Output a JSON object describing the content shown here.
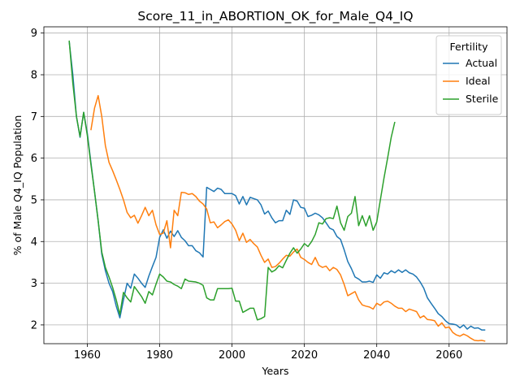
{
  "chart_data": {
    "type": "line",
    "title": "Score_11_in_ABORTION_OK_for_Male_Q4_IQ",
    "xlabel": "Years",
    "ylabel": "% of Male Q4_IQ Population",
    "xlim": [
      1948,
      2076
    ],
    "ylim": [
      1.55,
      9.15
    ],
    "xticks": [
      1960,
      1980,
      2000,
      2020,
      2040,
      2060
    ],
    "yticks": [
      2,
      3,
      4,
      5,
      6,
      7,
      8,
      9
    ],
    "grid": true,
    "legend": {
      "title": "Fertility",
      "position": "top-right"
    },
    "series": [
      {
        "name": "Actual",
        "color": "#1f77b4",
        "points": [
          [
            1955,
            8.8
          ],
          [
            1956,
            8.0
          ],
          [
            1957,
            7.0
          ],
          [
            1958,
            6.5
          ],
          [
            1959,
            7.1
          ],
          [
            1960,
            6.6
          ],
          [
            1961,
            5.9
          ],
          [
            1962,
            5.2
          ],
          [
            1963,
            4.5
          ],
          [
            1964,
            3.7
          ],
          [
            1965,
            3.3
          ],
          [
            1966,
            3.0
          ],
          [
            1967,
            2.8
          ],
          [
            1968,
            2.45
          ],
          [
            1969,
            2.17
          ],
          [
            1970,
            2.6
          ],
          [
            1971,
            3.0
          ],
          [
            1972,
            2.88
          ],
          [
            1973,
            3.22
          ],
          [
            1974,
            3.12
          ],
          [
            1975,
            3.0
          ],
          [
            1976,
            2.9
          ],
          [
            1977,
            3.17
          ],
          [
            1978,
            3.4
          ],
          [
            1979,
            3.62
          ],
          [
            1980,
            4.1
          ],
          [
            1981,
            4.28
          ],
          [
            1982,
            4.08
          ],
          [
            1983,
            4.25
          ],
          [
            1984,
            4.12
          ],
          [
            1985,
            4.26
          ],
          [
            1986,
            4.1
          ],
          [
            1987,
            4.02
          ],
          [
            1988,
            3.9
          ],
          [
            1989,
            3.9
          ],
          [
            1990,
            3.78
          ],
          [
            1991,
            3.73
          ],
          [
            1992,
            3.63
          ],
          [
            1993,
            5.3
          ],
          [
            1994,
            5.25
          ],
          [
            1995,
            5.2
          ],
          [
            1996,
            5.28
          ],
          [
            1997,
            5.25
          ],
          [
            1998,
            5.15
          ],
          [
            1999,
            5.15
          ],
          [
            2000,
            5.15
          ],
          [
            2001,
            5.1
          ],
          [
            2002,
            4.9
          ],
          [
            2003,
            5.08
          ],
          [
            2004,
            4.88
          ],
          [
            2005,
            5.06
          ],
          [
            2006,
            5.03
          ],
          [
            2007,
            5.0
          ],
          [
            2008,
            4.88
          ],
          [
            2009,
            4.66
          ],
          [
            2010,
            4.73
          ],
          [
            2011,
            4.57
          ],
          [
            2012,
            4.45
          ],
          [
            2013,
            4.5
          ],
          [
            2014,
            4.5
          ],
          [
            2015,
            4.75
          ],
          [
            2016,
            4.65
          ],
          [
            2017,
            5.0
          ],
          [
            2018,
            4.97
          ],
          [
            2019,
            4.82
          ],
          [
            2020,
            4.8
          ],
          [
            2021,
            4.6
          ],
          [
            2022,
            4.63
          ],
          [
            2023,
            4.68
          ],
          [
            2024,
            4.64
          ],
          [
            2025,
            4.57
          ],
          [
            2026,
            4.45
          ],
          [
            2027,
            4.32
          ],
          [
            2028,
            4.28
          ],
          [
            2029,
            4.12
          ],
          [
            2030,
            4.05
          ],
          [
            2031,
            3.8
          ],
          [
            2032,
            3.52
          ],
          [
            2033,
            3.35
          ],
          [
            2034,
            3.15
          ],
          [
            2035,
            3.1
          ],
          [
            2036,
            3.03
          ],
          [
            2037,
            3.03
          ],
          [
            2038,
            3.05
          ],
          [
            2039,
            3.02
          ],
          [
            2040,
            3.2
          ],
          [
            2041,
            3.12
          ],
          [
            2042,
            3.25
          ],
          [
            2043,
            3.22
          ],
          [
            2044,
            3.3
          ],
          [
            2045,
            3.25
          ],
          [
            2046,
            3.32
          ],
          [
            2047,
            3.26
          ],
          [
            2048,
            3.32
          ],
          [
            2049,
            3.25
          ],
          [
            2050,
            3.22
          ],
          [
            2051,
            3.15
          ],
          [
            2052,
            3.03
          ],
          [
            2053,
            2.88
          ],
          [
            2054,
            2.65
          ],
          [
            2055,
            2.52
          ],
          [
            2056,
            2.4
          ],
          [
            2057,
            2.27
          ],
          [
            2058,
            2.2
          ],
          [
            2059,
            2.1
          ],
          [
            2060,
            2.03
          ],
          [
            2061,
            2.02
          ],
          [
            2062,
            2.0
          ],
          [
            2063,
            1.93
          ],
          [
            2064,
            2.0
          ],
          [
            2065,
            1.9
          ],
          [
            2066,
            1.97
          ],
          [
            2067,
            1.92
          ],
          [
            2068,
            1.93
          ],
          [
            2069,
            1.88
          ],
          [
            2070,
            1.88
          ]
        ]
      },
      {
        "name": "Ideal",
        "color": "#ff7f0e",
        "points": [
          [
            1961,
            6.67
          ],
          [
            1962,
            7.2
          ],
          [
            1963,
            7.5
          ],
          [
            1964,
            7.0
          ],
          [
            1965,
            6.3
          ],
          [
            1966,
            5.9
          ],
          [
            1967,
            5.7
          ],
          [
            1968,
            5.48
          ],
          [
            1969,
            5.25
          ],
          [
            1970,
            5.0
          ],
          [
            1971,
            4.7
          ],
          [
            1972,
            4.57
          ],
          [
            1973,
            4.63
          ],
          [
            1974,
            4.44
          ],
          [
            1975,
            4.62
          ],
          [
            1976,
            4.82
          ],
          [
            1977,
            4.62
          ],
          [
            1978,
            4.75
          ],
          [
            1979,
            4.4
          ],
          [
            1980,
            4.17
          ],
          [
            1981,
            4.2
          ],
          [
            1982,
            4.5
          ],
          [
            1983,
            3.85
          ],
          [
            1984,
            4.75
          ],
          [
            1985,
            4.62
          ],
          [
            1986,
            5.18
          ],
          [
            1987,
            5.17
          ],
          [
            1988,
            5.13
          ],
          [
            1989,
            5.15
          ],
          [
            1990,
            5.08
          ],
          [
            1991,
            4.97
          ],
          [
            1992,
            4.9
          ],
          [
            1993,
            4.78
          ],
          [
            1994,
            4.45
          ],
          [
            1995,
            4.47
          ],
          [
            1996,
            4.33
          ],
          [
            1997,
            4.4
          ],
          [
            1998,
            4.48
          ],
          [
            1999,
            4.52
          ],
          [
            2000,
            4.42
          ],
          [
            2001,
            4.27
          ],
          [
            2002,
            4.02
          ],
          [
            2003,
            4.2
          ],
          [
            2004,
            3.98
          ],
          [
            2005,
            4.05
          ],
          [
            2006,
            3.95
          ],
          [
            2007,
            3.87
          ],
          [
            2008,
            3.67
          ],
          [
            2009,
            3.5
          ],
          [
            2010,
            3.58
          ],
          [
            2011,
            3.38
          ],
          [
            2012,
            3.4
          ],
          [
            2013,
            3.48
          ],
          [
            2014,
            3.58
          ],
          [
            2015,
            3.67
          ],
          [
            2016,
            3.65
          ],
          [
            2017,
            3.75
          ],
          [
            2018,
            3.82
          ],
          [
            2019,
            3.62
          ],
          [
            2020,
            3.57
          ],
          [
            2021,
            3.5
          ],
          [
            2022,
            3.45
          ],
          [
            2023,
            3.62
          ],
          [
            2024,
            3.43
          ],
          [
            2025,
            3.38
          ],
          [
            2026,
            3.41
          ],
          [
            2027,
            3.3
          ],
          [
            2028,
            3.38
          ],
          [
            2029,
            3.33
          ],
          [
            2030,
            3.2
          ],
          [
            2031,
            2.97
          ],
          [
            2032,
            2.7
          ],
          [
            2033,
            2.75
          ],
          [
            2034,
            2.8
          ],
          [
            2035,
            2.6
          ],
          [
            2036,
            2.48
          ],
          [
            2037,
            2.45
          ],
          [
            2038,
            2.43
          ],
          [
            2039,
            2.38
          ],
          [
            2040,
            2.52
          ],
          [
            2041,
            2.47
          ],
          [
            2042,
            2.55
          ],
          [
            2043,
            2.57
          ],
          [
            2044,
            2.52
          ],
          [
            2045,
            2.45
          ],
          [
            2046,
            2.4
          ],
          [
            2047,
            2.4
          ],
          [
            2048,
            2.32
          ],
          [
            2049,
            2.38
          ],
          [
            2050,
            2.35
          ],
          [
            2051,
            2.32
          ],
          [
            2052,
            2.17
          ],
          [
            2053,
            2.22
          ],
          [
            2054,
            2.13
          ],
          [
            2055,
            2.12
          ],
          [
            2056,
            2.1
          ],
          [
            2057,
            1.97
          ],
          [
            2058,
            2.05
          ],
          [
            2059,
            1.93
          ],
          [
            2060,
            1.95
          ],
          [
            2061,
            1.82
          ],
          [
            2062,
            1.76
          ],
          [
            2063,
            1.73
          ],
          [
            2064,
            1.78
          ],
          [
            2065,
            1.74
          ],
          [
            2066,
            1.68
          ],
          [
            2067,
            1.63
          ],
          [
            2068,
            1.62
          ],
          [
            2069,
            1.63
          ],
          [
            2070,
            1.61
          ]
        ]
      },
      {
        "name": "Sterile",
        "color": "#2ca02c",
        "points": [
          [
            1955,
            8.82
          ],
          [
            1956,
            7.8
          ],
          [
            1957,
            7.0
          ],
          [
            1958,
            6.52
          ],
          [
            1959,
            7.1
          ],
          [
            1960,
            6.55
          ],
          [
            1961,
            5.85
          ],
          [
            1962,
            5.2
          ],
          [
            1963,
            4.5
          ],
          [
            1964,
            3.75
          ],
          [
            1965,
            3.38
          ],
          [
            1966,
            3.15
          ],
          [
            1967,
            2.9
          ],
          [
            1968,
            2.6
          ],
          [
            1969,
            2.25
          ],
          [
            1970,
            2.78
          ],
          [
            1971,
            2.65
          ],
          [
            1972,
            2.55
          ],
          [
            1973,
            2.92
          ],
          [
            1974,
            2.8
          ],
          [
            1975,
            2.68
          ],
          [
            1976,
            2.52
          ],
          [
            1977,
            2.8
          ],
          [
            1978,
            2.72
          ],
          [
            1979,
            2.98
          ],
          [
            1980,
            3.22
          ],
          [
            1981,
            3.15
          ],
          [
            1982,
            3.05
          ],
          [
            1983,
            3.03
          ],
          [
            1984,
            2.97
          ],
          [
            1985,
            2.93
          ],
          [
            1986,
            2.87
          ],
          [
            1987,
            3.1
          ],
          [
            1988,
            3.05
          ],
          [
            1989,
            3.04
          ],
          [
            1990,
            3.03
          ],
          [
            1991,
            3.0
          ],
          [
            1992,
            2.95
          ],
          [
            1993,
            2.65
          ],
          [
            1994,
            2.6
          ],
          [
            1995,
            2.6
          ],
          [
            1996,
            2.87
          ],
          [
            1997,
            2.87
          ],
          [
            1998,
            2.87
          ],
          [
            1999,
            2.87
          ],
          [
            2000,
            2.88
          ],
          [
            2001,
            2.57
          ],
          [
            2002,
            2.57
          ],
          [
            2003,
            2.3
          ],
          [
            2004,
            2.35
          ],
          [
            2005,
            2.4
          ],
          [
            2006,
            2.4
          ],
          [
            2007,
            2.12
          ],
          [
            2008,
            2.15
          ],
          [
            2009,
            2.2
          ],
          [
            2010,
            3.38
          ],
          [
            2011,
            3.27
          ],
          [
            2012,
            3.32
          ],
          [
            2013,
            3.42
          ],
          [
            2014,
            3.37
          ],
          [
            2015,
            3.55
          ],
          [
            2016,
            3.72
          ],
          [
            2017,
            3.85
          ],
          [
            2018,
            3.72
          ],
          [
            2019,
            3.82
          ],
          [
            2020,
            3.95
          ],
          [
            2021,
            3.88
          ],
          [
            2022,
            4.0
          ],
          [
            2023,
            4.17
          ],
          [
            2024,
            4.45
          ],
          [
            2025,
            4.42
          ],
          [
            2026,
            4.55
          ],
          [
            2027,
            4.57
          ],
          [
            2028,
            4.55
          ],
          [
            2029,
            4.85
          ],
          [
            2030,
            4.45
          ],
          [
            2031,
            4.27
          ],
          [
            2032,
            4.6
          ],
          [
            2033,
            4.68
          ],
          [
            2034,
            5.08
          ],
          [
            2035,
            4.38
          ],
          [
            2036,
            4.62
          ],
          [
            2037,
            4.37
          ],
          [
            2038,
            4.62
          ],
          [
            2039,
            4.27
          ],
          [
            2040,
            4.47
          ],
          [
            2041,
            5.0
          ],
          [
            2042,
            5.52
          ],
          [
            2043,
            6.0
          ],
          [
            2044,
            6.5
          ],
          [
            2045,
            6.87
          ]
        ]
      }
    ]
  }
}
